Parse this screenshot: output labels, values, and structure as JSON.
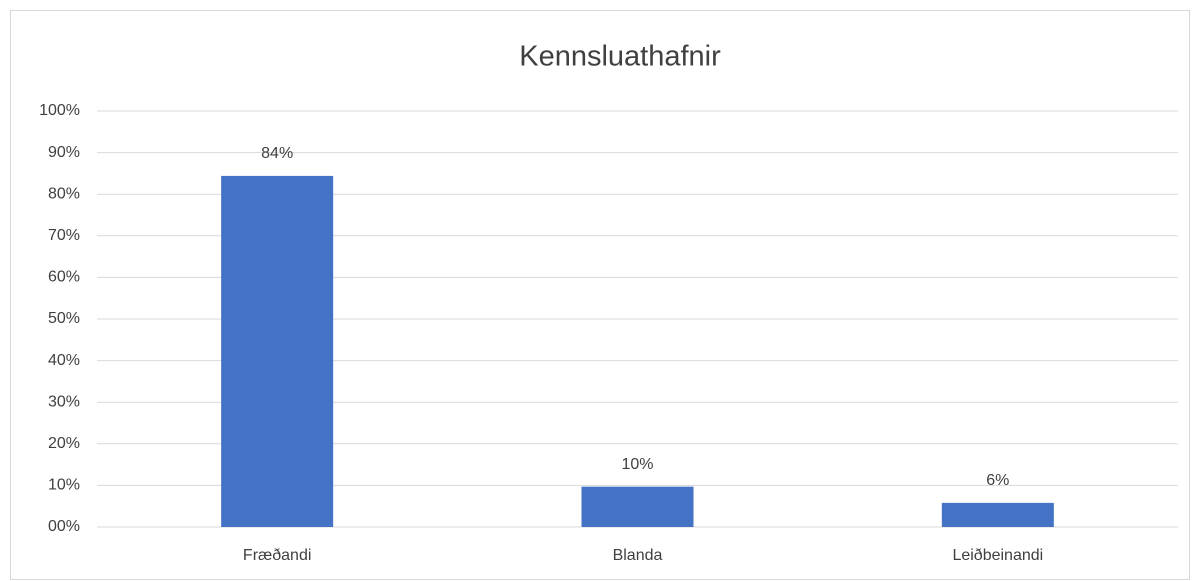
{
  "chart_data": {
    "type": "bar",
    "title": "Kennsluathafnir",
    "categories": [
      "Fræðandi",
      "Blanda",
      "Leiðbeinandi"
    ],
    "values": [
      84.4,
      9.7,
      5.8
    ],
    "value_labels": [
      "84%",
      "10%",
      "6%"
    ],
    "color": "#4472c4",
    "ylim": [
      0,
      100
    ],
    "yticks": [
      {
        "value": 0,
        "label": "00%"
      },
      {
        "value": 10,
        "label": "10%"
      },
      {
        "value": 20,
        "label": "20%"
      },
      {
        "value": 30,
        "label": "30%"
      },
      {
        "value": 40,
        "label": "40%"
      },
      {
        "value": 50,
        "label": "50%"
      },
      {
        "value": 60,
        "label": "60%"
      },
      {
        "value": 70,
        "label": "70%"
      },
      {
        "value": 80,
        "label": "80%"
      },
      {
        "value": 90,
        "label": "90%"
      },
      {
        "value": 100,
        "label": "100%"
      }
    ],
    "grid": true
  }
}
